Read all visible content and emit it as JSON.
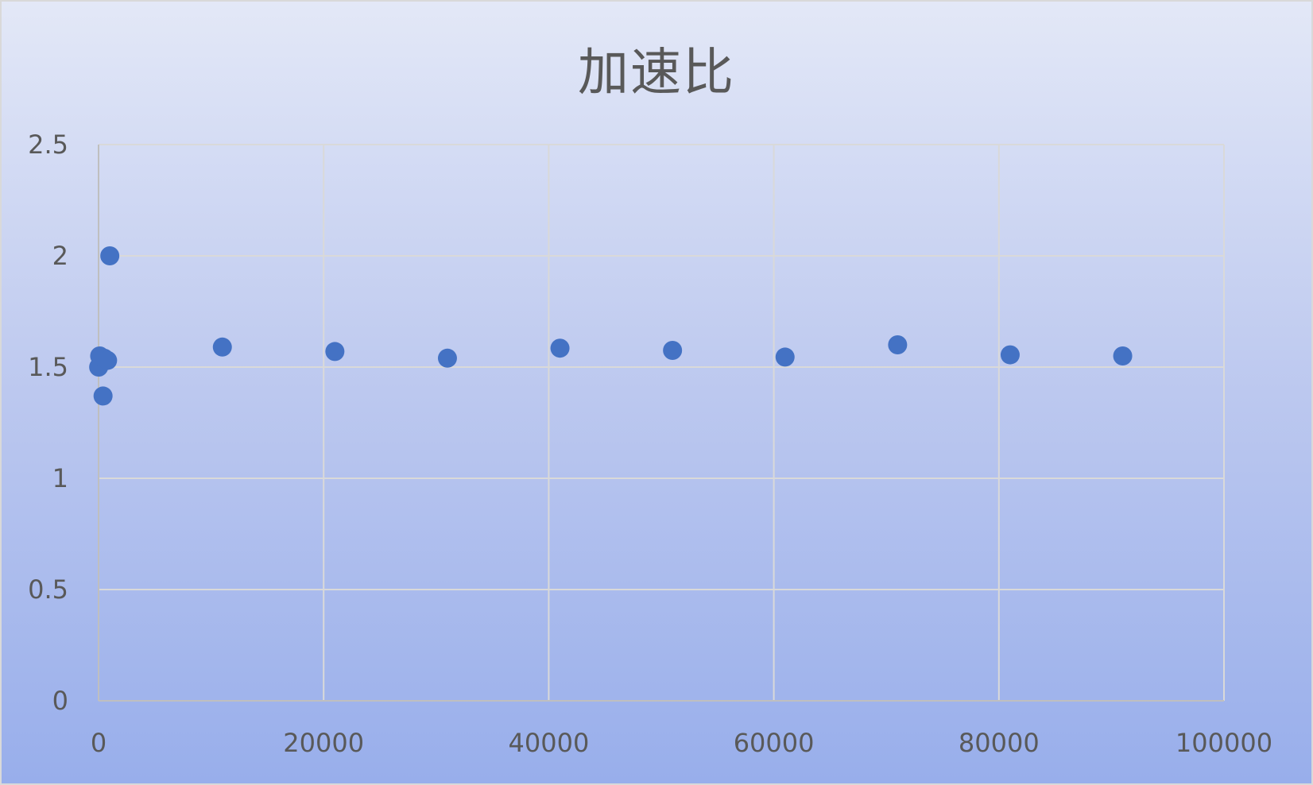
{
  "chart_data": {
    "type": "scatter",
    "title": "加速比",
    "xlabel": "",
    "ylabel": "",
    "xlim": [
      0,
      100000
    ],
    "ylim": [
      0,
      2.5
    ],
    "x_ticks": [
      0,
      20000,
      40000,
      60000,
      80000,
      100000
    ],
    "y_ticks": [
      0,
      0.5,
      1,
      1.5,
      2,
      2.5
    ],
    "x_tick_labels": [
      "0",
      "20000",
      "40000",
      "60000",
      "80000",
      "100000"
    ],
    "y_tick_labels": [
      "0",
      "0.5",
      "1",
      "1.5",
      "2",
      "2.5"
    ],
    "grid": true,
    "legend": "none",
    "marker_color": "#4472c4",
    "grid_color": "#d9d9d9",
    "series": [
      {
        "points": [
          {
            "x": 10,
            "y": 1.5
          },
          {
            "x": 100,
            "y": 1.55
          },
          {
            "x": 500,
            "y": 1.54
          },
          {
            "x": 800,
            "y": 1.53
          },
          {
            "x": 400,
            "y": 1.37
          },
          {
            "x": 1000,
            "y": 2.0
          },
          {
            "x": 11000,
            "y": 1.59
          },
          {
            "x": 21000,
            "y": 1.57
          },
          {
            "x": 31000,
            "y": 1.54
          },
          {
            "x": 41000,
            "y": 1.585
          },
          {
            "x": 51000,
            "y": 1.575
          },
          {
            "x": 61000,
            "y": 1.545
          },
          {
            "x": 71000,
            "y": 1.6
          },
          {
            "x": 81000,
            "y": 1.555
          },
          {
            "x": 91000,
            "y": 1.55
          }
        ]
      }
    ]
  }
}
